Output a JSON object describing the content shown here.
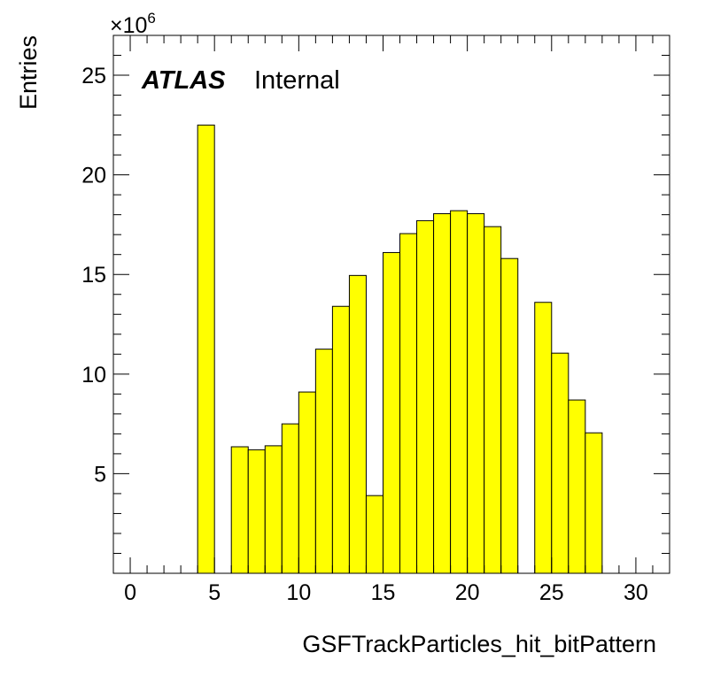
{
  "chart_data": {
    "type": "bar",
    "histogram": true,
    "xlabel": "GSFTrackParticles_hit_bitPattern",
    "ylabel": "Entries",
    "y_multiplier": "×10",
    "y_multiplier_exp": "6",
    "xlim": [
      -1,
      32
    ],
    "ylim": [
      0,
      27
    ],
    "x_ticks": [
      "0",
      "5",
      "10",
      "15",
      "20",
      "25",
      "30"
    ],
    "y_ticks": [
      "5",
      "10",
      "15",
      "20",
      "25"
    ],
    "fill_color": "#ffff00",
    "edge_color": "#000000",
    "label_main": "ATLAS",
    "label_sub": "Internal",
    "bins": [
      {
        "low": 4,
        "high": 5,
        "value": 22.5
      },
      {
        "low": 6,
        "high": 7,
        "value": 6.35
      },
      {
        "low": 7,
        "high": 8,
        "value": 6.2
      },
      {
        "low": 8,
        "high": 9,
        "value": 6.4
      },
      {
        "low": 9,
        "high": 10,
        "value": 7.5
      },
      {
        "low": 10,
        "high": 11,
        "value": 9.1
      },
      {
        "low": 11,
        "high": 12,
        "value": 11.25
      },
      {
        "low": 12,
        "high": 13,
        "value": 13.4
      },
      {
        "low": 13,
        "high": 14,
        "value": 14.95
      },
      {
        "low": 14,
        "high": 15,
        "value": 3.9
      },
      {
        "low": 15,
        "high": 16,
        "value": 16.1
      },
      {
        "low": 16,
        "high": 17,
        "value": 17.05
      },
      {
        "low": 17,
        "high": 18,
        "value": 17.7
      },
      {
        "low": 18,
        "high": 19,
        "value": 18.05
      },
      {
        "low": 19,
        "high": 20,
        "value": 18.2
      },
      {
        "low": 20,
        "high": 21,
        "value": 18.05
      },
      {
        "low": 21,
        "high": 22,
        "value": 17.4
      },
      {
        "low": 22,
        "high": 23,
        "value": 15.8
      },
      {
        "low": 24,
        "high": 25,
        "value": 13.6
      },
      {
        "low": 25,
        "high": 26,
        "value": 11.05
      },
      {
        "low": 26,
        "high": 27,
        "value": 8.7
      },
      {
        "low": 27,
        "high": 28,
        "value": 7.05
      }
    ]
  }
}
